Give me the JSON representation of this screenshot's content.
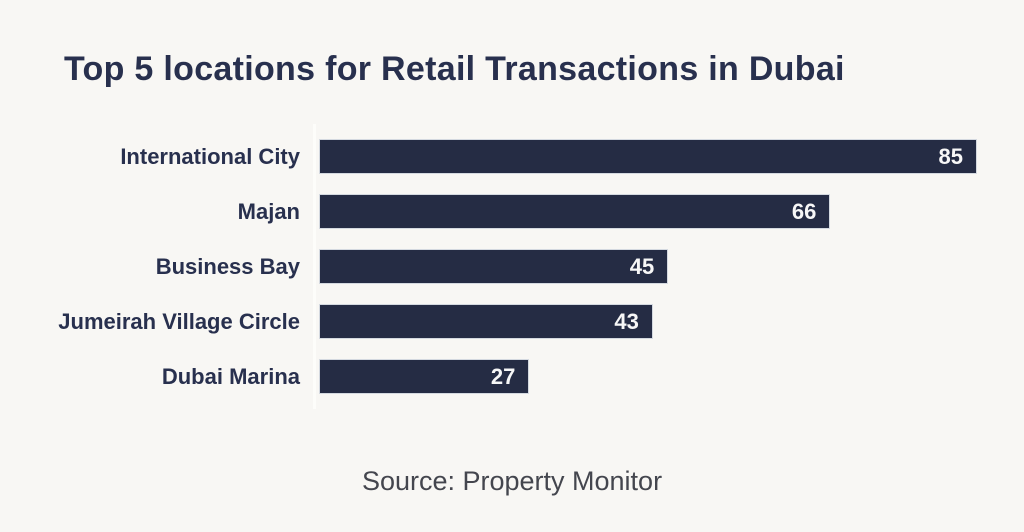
{
  "title": "Top 5 locations for Retail Transactions in Dubai",
  "source": "Source: Property Monitor",
  "colors": {
    "background": "#F8F7F4",
    "bar": "#252C44",
    "text": "#28304E",
    "value_label": "#F7F7F7",
    "source_text": "#44464E"
  },
  "chart_data": {
    "type": "bar",
    "orientation": "horizontal",
    "title": "Top 5 locations for Retail Transactions in Dubai",
    "categories": [
      "International City",
      "Majan",
      "Business Bay",
      "Jumeirah Village Circle",
      "Dubai Marina"
    ],
    "values": [
      85,
      66,
      45,
      43,
      27
    ],
    "xlim": [
      0,
      85
    ],
    "grid": false,
    "legend": false,
    "value_labels": "inside-end",
    "source": "Source: Property Monitor"
  }
}
